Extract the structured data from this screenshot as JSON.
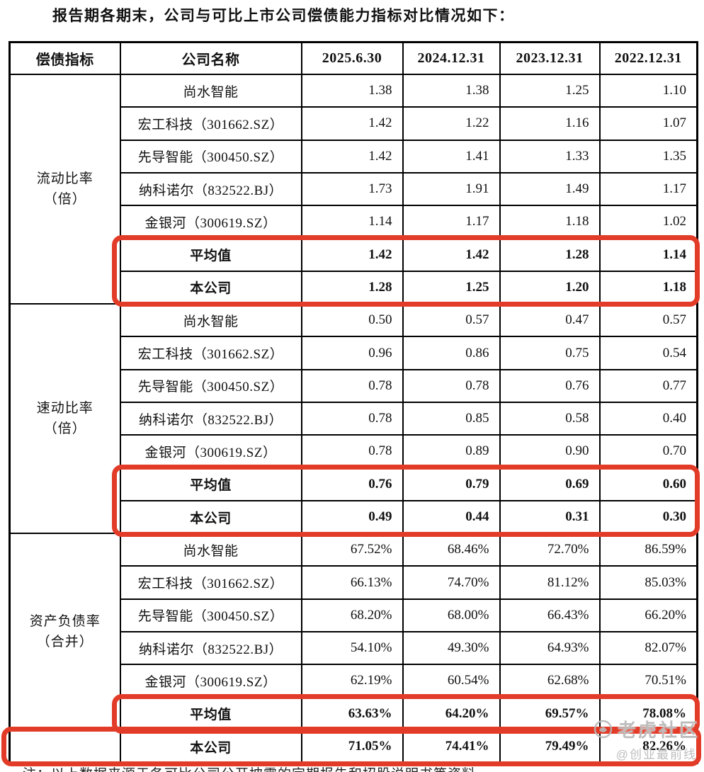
{
  "title": "报告期各期末，公司与可比上市公司偿债能力指标对比情况如下：",
  "table": {
    "headers": [
      "偿债指标",
      "公司名称",
      "2025.6.30",
      "2024.12.31",
      "2023.12.31",
      "2022.12.31"
    ],
    "sections": [
      {
        "indicator": "流动比率\n（倍）",
        "rows": [
          {
            "company": "尚水智能",
            "bold": false,
            "values": [
              "1.38",
              "1.38",
              "1.25",
              "1.10"
            ]
          },
          {
            "company": "宏工科技（301662.SZ）",
            "bold": false,
            "values": [
              "1.42",
              "1.22",
              "1.16",
              "1.07"
            ]
          },
          {
            "company": "先导智能（300450.SZ）",
            "bold": false,
            "values": [
              "1.42",
              "1.41",
              "1.33",
              "1.35"
            ]
          },
          {
            "company": "纳科诺尔（832522.BJ）",
            "bold": false,
            "values": [
              "1.73",
              "1.91",
              "1.49",
              "1.17"
            ]
          },
          {
            "company": "金银河（300619.SZ）",
            "bold": false,
            "values": [
              "1.14",
              "1.17",
              "1.18",
              "1.02"
            ]
          },
          {
            "company": "平均值",
            "bold": true,
            "values": [
              "1.42",
              "1.42",
              "1.28",
              "1.14"
            ]
          },
          {
            "company": "本公司",
            "bold": true,
            "values": [
              "1.28",
              "1.25",
              "1.20",
              "1.18"
            ]
          }
        ]
      },
      {
        "indicator": "速动比率\n（倍）",
        "rows": [
          {
            "company": "尚水智能",
            "bold": false,
            "values": [
              "0.50",
              "0.57",
              "0.47",
              "0.57"
            ]
          },
          {
            "company": "宏工科技（301662.SZ）",
            "bold": false,
            "values": [
              "0.96",
              "0.86",
              "0.75",
              "0.54"
            ]
          },
          {
            "company": "先导智能（300450.SZ）",
            "bold": false,
            "values": [
              "0.78",
              "0.78",
              "0.76",
              "0.77"
            ]
          },
          {
            "company": "纳科诺尔（832522.BJ）",
            "bold": false,
            "values": [
              "0.78",
              "0.85",
              "0.58",
              "0.40"
            ]
          },
          {
            "company": "金银河（300619.SZ）",
            "bold": false,
            "values": [
              "0.78",
              "0.89",
              "0.90",
              "0.70"
            ]
          },
          {
            "company": "平均值",
            "bold": true,
            "values": [
              "0.76",
              "0.79",
              "0.69",
              "0.60"
            ]
          },
          {
            "company": "本公司",
            "bold": true,
            "values": [
              "0.49",
              "0.44",
              "0.31",
              "0.30"
            ]
          }
        ]
      },
      {
        "indicator": "资产负债率\n（合并）",
        "rows": [
          {
            "company": "尚水智能",
            "bold": false,
            "values": [
              "67.52%",
              "68.46%",
              "72.70%",
              "86.59%"
            ]
          },
          {
            "company": "宏工科技（301662.SZ）",
            "bold": false,
            "values": [
              "66.13%",
              "74.70%",
              "81.12%",
              "85.03%"
            ]
          },
          {
            "company": "先导智能（300450.SZ）",
            "bold": false,
            "values": [
              "68.20%",
              "68.00%",
              "66.43%",
              "66.20%"
            ]
          },
          {
            "company": "纳科诺尔（832522.BJ）",
            "bold": false,
            "values": [
              "54.10%",
              "49.30%",
              "64.93%",
              "82.07%"
            ]
          },
          {
            "company": "金银河（300619.SZ）",
            "bold": false,
            "values": [
              "62.19%",
              "60.54%",
              "62.68%",
              "70.51%"
            ]
          },
          {
            "company": "平均值",
            "bold": true,
            "values": [
              "63.63%",
              "64.20%",
              "69.57%",
              "78.08%"
            ]
          }
        ]
      }
    ],
    "last_row": {
      "indicator": "",
      "company": "本公司",
      "bold": true,
      "values": [
        "71.05%",
        "74.41%",
        "79.49%",
        "82.26%"
      ]
    }
  },
  "note": "注：以上数据来源于各可比公司公开披露的定期报告和招股说明书等资料",
  "watermark": {
    "community": "老虎社区",
    "handle": "@创业最前线"
  },
  "colors": {
    "highlight_box": "#e23b28",
    "table_border": "#000000"
  }
}
